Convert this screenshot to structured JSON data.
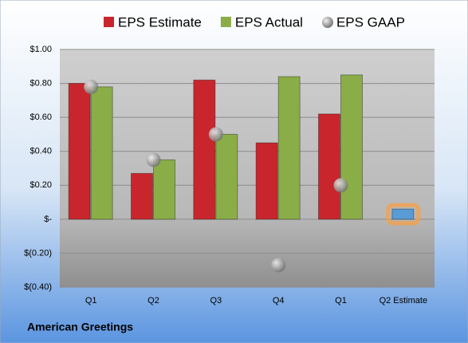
{
  "chart_data": {
    "type": "bar",
    "title": "American Greetings",
    "categories": [
      "Q1",
      "Q2",
      "Q3",
      "Q4",
      "Q1",
      "Q2 Estimate"
    ],
    "series": [
      {
        "name": "EPS Estimate",
        "color": "#c8262c",
        "colors": [
          "#c8262c",
          "#c8262c",
          "#c8262c",
          "#c8262c",
          "#c8262c",
          "#5b9bd5"
        ],
        "values": [
          0.8,
          0.27,
          0.82,
          0.45,
          0.62,
          0.06
        ]
      },
      {
        "name": "EPS Actual",
        "color": "#8aad47",
        "values": [
          0.78,
          0.35,
          0.5,
          0.84,
          0.85,
          null
        ]
      },
      {
        "name": "EPS GAAP",
        "color": "#a6a6a6",
        "marker": "circle",
        "values": [
          0.78,
          0.35,
          0.5,
          -0.27,
          0.2,
          null
        ]
      }
    ],
    "ylim": [
      -0.4,
      1.0
    ],
    "yticks": [
      {
        "value": -0.4,
        "label": "$(0.40)"
      },
      {
        "value": -0.2,
        "label": "$(0.20)"
      },
      {
        "value": 0,
        "label": "$-"
      },
      {
        "value": 0.2,
        "label": "$0.20"
      },
      {
        "value": 0.4,
        "label": "$0.40"
      },
      {
        "value": 0.6,
        "label": "$0.60"
      },
      {
        "value": 0.8,
        "label": "$0.80"
      },
      {
        "value": 1.0,
        "label": "$1.00"
      }
    ],
    "grid": true,
    "legend": "top"
  }
}
